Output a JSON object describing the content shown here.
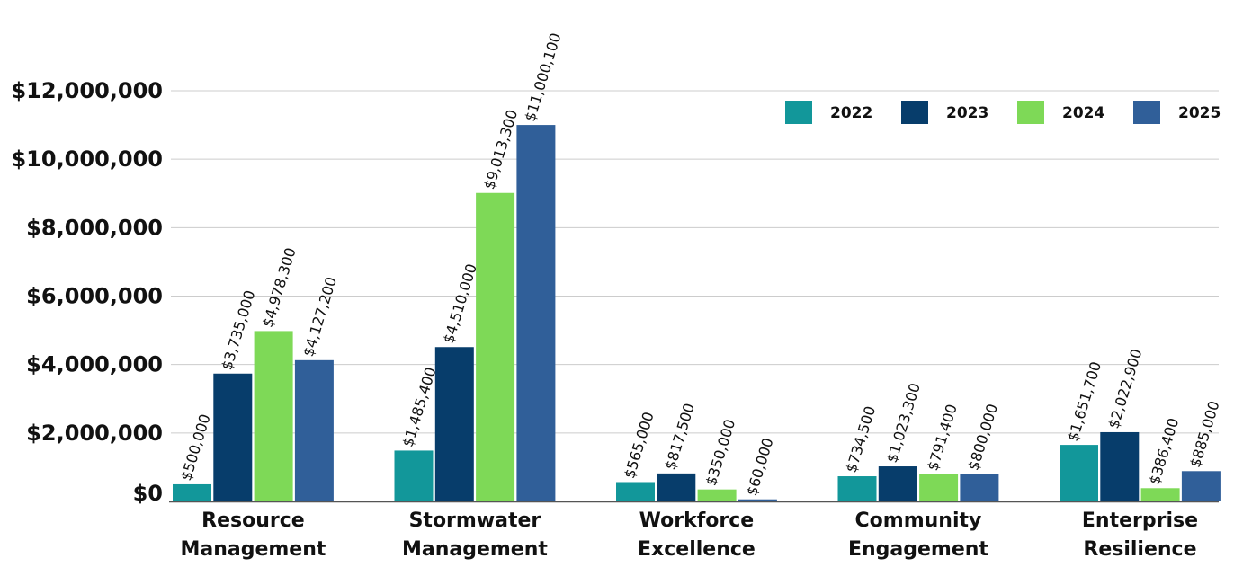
{
  "chart_data": {
    "type": "bar",
    "title": "",
    "xlabel": "",
    "ylabel": "",
    "categories": [
      [
        "Resource",
        "Management"
      ],
      [
        "Stormwater",
        "Management"
      ],
      [
        "Workforce",
        "Excellence"
      ],
      [
        "Community",
        "Engagement"
      ],
      [
        "Enterprise",
        "Resilience"
      ]
    ],
    "series": [
      {
        "name": "2022",
        "color": "#12979a",
        "values": [
          500000,
          1485400,
          565000,
          734500,
          1651700
        ],
        "labels": [
          "$500,000",
          "$1,485,400",
          "$565,000",
          "$734,500",
          "$1,651,700"
        ]
      },
      {
        "name": "2023",
        "color": "#073d6b",
        "values": [
          3735000,
          4510000,
          817500,
          1023300,
          2022900
        ],
        "labels": [
          "$3,735,000",
          "$4,510,000",
          "$817,500",
          "$1,023,300",
          "$2,022,900"
        ]
      },
      {
        "name": "2024",
        "color": "#7ed957",
        "values": [
          4978300,
          9013300,
          350000,
          791400,
          386400
        ],
        "labels": [
          "$4,978,300",
          "$9,013,300",
          "$350,000",
          "$791,400",
          "$386,400"
        ]
      },
      {
        "name": "2025",
        "color": "#305f99",
        "values": [
          4127200,
          11000100,
          60000,
          800000,
          885000
        ],
        "labels": [
          "$4,127,200",
          "$11,000,100",
          "$60,000",
          "$800,000",
          "$885,000"
        ]
      }
    ],
    "ylim": [
      0,
      12000000
    ],
    "yticks": [
      0,
      2000000,
      4000000,
      6000000,
      8000000,
      10000000,
      12000000
    ],
    "ytick_labels": [
      "$0",
      "$2,000,000",
      "$4,000,000",
      "$6,000,000",
      "$8,000,000",
      "$10,000,000",
      "$12,000,000"
    ],
    "grid": true,
    "legend_position": "top-right",
    "axis_color": "#555555",
    "grid_color": "#cccccc"
  }
}
